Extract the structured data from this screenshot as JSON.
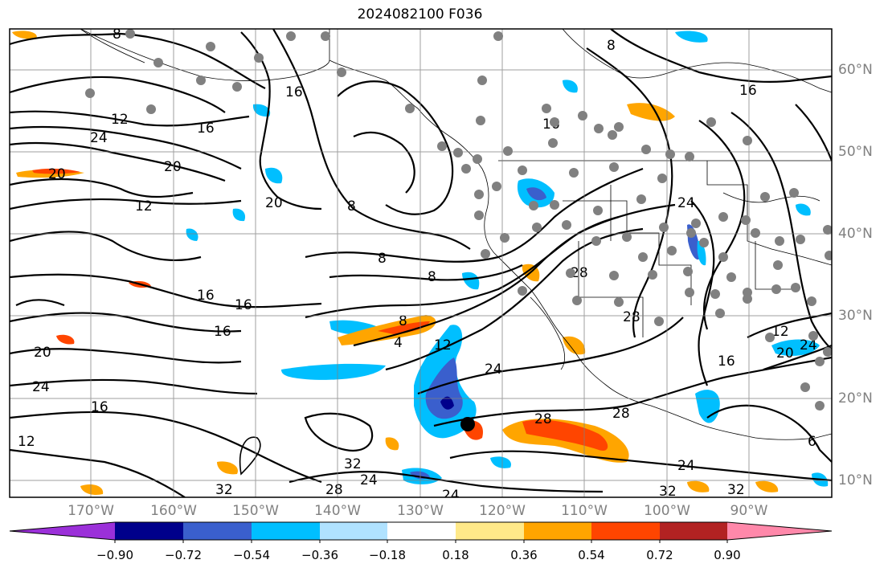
{
  "title": "2024082100 F036",
  "longitude_labels": [
    "170°W",
    "160°W",
    "150°W",
    "140°W",
    "130°W",
    "120°W",
    "110°W",
    "100°W",
    "90°W"
  ],
  "latitude_labels": [
    "60°N",
    "50°N",
    "40°N",
    "30°N",
    "20°N",
    "10°N"
  ],
  "colorbar": {
    "tick_labels": [
      "−0.90",
      "−0.72",
      "−0.54",
      "−0.36",
      "−0.18",
      "0.18",
      "0.36",
      "0.54",
      "0.72",
      "0.90"
    ],
    "colors": [
      "#9b30d9",
      "#00008b",
      "#3a5fcd",
      "#00bfff",
      "#b0e2ff",
      "#ffffff",
      "#ffe989",
      "#ffa500",
      "#ff4500",
      "#b22222",
      "#ff88aa"
    ]
  },
  "contour_labels": [
    "8",
    "16",
    "16",
    "12",
    "24",
    "20",
    "20",
    "12",
    "20",
    "8",
    "8",
    "8",
    "16",
    "16",
    "16",
    "20",
    "24",
    "16",
    "12",
    "8",
    "4",
    "12",
    "24",
    "28",
    "28",
    "24",
    "28",
    "24",
    "32",
    "32",
    "32",
    "28",
    "24",
    "28",
    "16",
    "16",
    "20",
    "24",
    "12",
    "24",
    "8",
    "16",
    "6",
    "32"
  ],
  "colors": {
    "grid": "#808080",
    "contour": "#000000",
    "axis_label": "#808080",
    "coast": "#000000"
  }
}
